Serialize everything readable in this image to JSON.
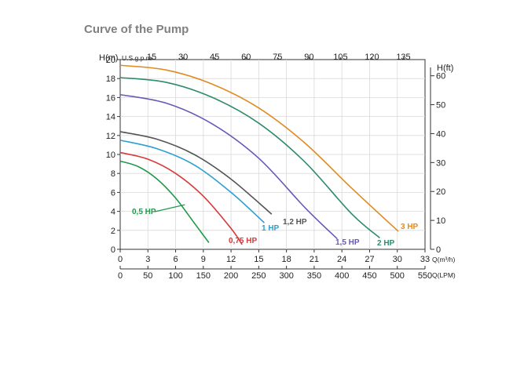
{
  "title": "Curve of the Pump",
  "chart_data": {
    "type": "line",
    "title": "Curve of the Pump",
    "axes": {
      "left": {
        "label": "H(m)",
        "range": [
          0,
          20
        ],
        "ticks": [
          "0",
          "2",
          "4",
          "6",
          "8",
          "10",
          "12",
          "14",
          "16",
          "18",
          "20"
        ]
      },
      "right": {
        "label": "H(ft)",
        "range": [
          0,
          65.6
        ],
        "ticks": [
          "0",
          "10",
          "20",
          "30",
          "40",
          "50",
          "60"
        ]
      },
      "bottom1": {
        "label": "Q(m³/h)",
        "range": [
          0,
          33
        ],
        "ticks": [
          "0",
          "3",
          "6",
          "9",
          "12",
          "15",
          "18",
          "21",
          "24",
          "27",
          "30",
          "33"
        ]
      },
      "bottom2": {
        "label": "Q(LPM)",
        "range": [
          0,
          550
        ],
        "ticks": [
          "0",
          "50",
          "100",
          "150",
          "200",
          "250",
          "300",
          "350",
          "400",
          "450",
          "500",
          "550"
        ]
      },
      "top": {
        "label": "U.S.g.p.m",
        "range": [
          0,
          145.3
        ],
        "ticks": [
          "15",
          "30",
          "45",
          "60",
          "75",
          "90",
          "105",
          "120",
          "135"
        ]
      }
    },
    "grid": true,
    "series": [
      {
        "name": "0,5 HP",
        "color": "#1f9a4a",
        "x": [
          0,
          2,
          4,
          6,
          8,
          9.6
        ],
        "y": [
          9.3,
          8.7,
          7.4,
          5.4,
          2.8,
          0.7
        ]
      },
      {
        "name": "0,75 HP",
        "color": "#d63a3a",
        "x": [
          0,
          3,
          6,
          9,
          12,
          13.2
        ],
        "y": [
          10.2,
          9.5,
          8.0,
          5.6,
          2.2,
          0.5
        ]
      },
      {
        "name": "1 HP",
        "color": "#2a9fd0",
        "x": [
          0,
          4,
          8,
          12,
          15.6
        ],
        "y": [
          11.5,
          10.6,
          8.9,
          6.0,
          2.8
        ]
      },
      {
        "name": "1,2 HP",
        "color": "#555555",
        "x": [
          0,
          4,
          8,
          12,
          16.4
        ],
        "y": [
          12.4,
          11.6,
          10.0,
          7.4,
          3.7
        ]
      },
      {
        "name": "1,5 HP",
        "color": "#6a58b8",
        "x": [
          0,
          5,
          10,
          15,
          20,
          23.5
        ],
        "y": [
          16.3,
          15.4,
          13.2,
          9.6,
          4.4,
          1.1
        ]
      },
      {
        "name": "2 HP",
        "color": "#2e8b6e",
        "x": [
          0,
          5,
          10,
          15,
          20,
          25,
          28.1
        ],
        "y": [
          18.1,
          17.6,
          16.0,
          13.3,
          9.2,
          3.8,
          1.2
        ]
      },
      {
        "name": "3 HP",
        "color": "#e08a22",
        "x": [
          0,
          5,
          10,
          15,
          20,
          25,
          30.1
        ],
        "y": [
          19.4,
          18.9,
          17.4,
          14.9,
          11.2,
          6.5,
          1.9
        ]
      }
    ]
  }
}
